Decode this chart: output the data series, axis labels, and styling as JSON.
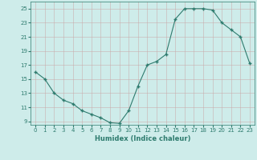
{
  "x": [
    0,
    1,
    2,
    3,
    4,
    5,
    6,
    7,
    8,
    9,
    10,
    11,
    12,
    13,
    14,
    15,
    16,
    17,
    18,
    19,
    20,
    21,
    22,
    23
  ],
  "y": [
    16,
    15,
    13,
    12,
    11.5,
    10.5,
    10,
    9.5,
    8.8,
    8.7,
    10.5,
    14,
    17,
    17.5,
    18.5,
    23.5,
    25,
    25,
    25,
    24.8,
    23,
    22,
    21,
    17.2
  ],
  "line_color": "#2e7b6e",
  "marker_color": "#2e7b6e",
  "bg_color": "#ceecea",
  "grid_color": "#b8d8d5",
  "xlabel": "Humidex (Indice chaleur)",
  "ylim": [
    8.5,
    26
  ],
  "xlim": [
    -0.5,
    23.5
  ],
  "yticks": [
    9,
    11,
    13,
    15,
    17,
    19,
    21,
    23,
    25
  ],
  "xticks": [
    0,
    1,
    2,
    3,
    4,
    5,
    6,
    7,
    8,
    9,
    10,
    11,
    12,
    13,
    14,
    15,
    16,
    17,
    18,
    19,
    20,
    21,
    22,
    23
  ],
  "xtick_labels": [
    "0",
    "1",
    "2",
    "3",
    "4",
    "5",
    "6",
    "7",
    "8",
    "9",
    "10",
    "11",
    "12",
    "13",
    "14",
    "15",
    "16",
    "17",
    "18",
    "19",
    "20",
    "21",
    "22",
    "23"
  ]
}
